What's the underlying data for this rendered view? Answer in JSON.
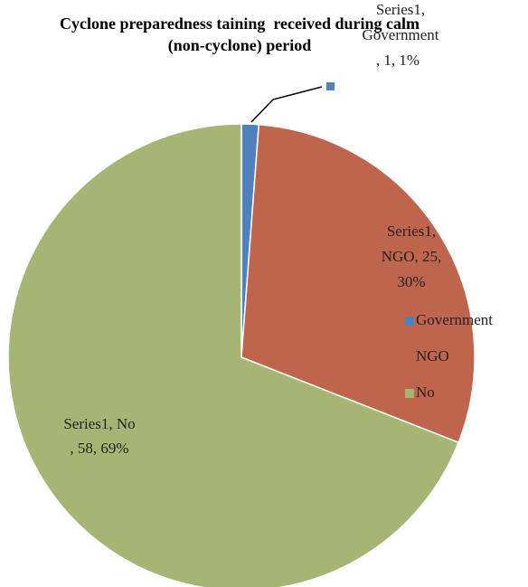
{
  "chart_data": {
    "type": "pie",
    "title": "Cyclone preparedness taining  received during calm (non-cyclone) period",
    "categories": [
      "Government",
      "NGO",
      "No"
    ],
    "values": [
      1,
      25,
      58
    ],
    "value_labels": [
      [
        "Series1,",
        "Government",
        ", 1, 1%"
      ],
      [
        "Series1,",
        "NGO, 25,",
        "30%"
      ],
      [
        "Series1, No",
        ", 58, 69%"
      ]
    ],
    "colors": [
      "#4f81bd",
      "#c0654d",
      "#a6b573"
    ],
    "legend": "right"
  }
}
